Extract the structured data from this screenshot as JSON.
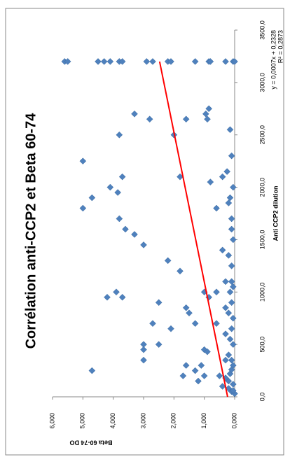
{
  "chart_data": {
    "type": "scatter",
    "title": "Corrélation anti-CCP2 et Beta 60-74",
    "x_label": "Anti CCP2 dilution",
    "y_label": "Beta 60-74 DO",
    "color": "#4f81bd",
    "x": [
      3200,
      3200,
      3200,
      3200,
      3200,
      3200,
      3200,
      3200,
      3200,
      3200,
      3200,
      3200,
      3200,
      3200,
      3200,
      3200,
      3200,
      2700,
      2650,
      2650,
      2700,
      2650,
      2750,
      2500,
      2500,
      2550,
      2300,
      2250,
      2100,
      2100,
      2100,
      2000,
      1950,
      1900,
      2150,
      2050,
      1800,
      1800,
      1900,
      1700,
      1600,
      1600,
      1550,
      1450,
      1300,
      1400,
      1200,
      1100,
      1100,
      1000,
      1000,
      1000,
      950,
      950,
      950,
      900,
      850,
      850,
      800,
      700,
      700,
      700,
      650,
      600,
      500,
      500,
      450,
      450,
      430,
      350,
      350,
      300,
      300,
      250,
      250,
      200,
      200,
      200,
      150,
      150,
      100,
      50,
      80,
      120,
      180,
      220,
      260,
      300,
      350,
      400,
      500,
      550,
      650,
      750,
      800,
      900,
      1000,
      1050,
      1250,
      1350,
      1500,
      1700,
      1850,
      2000,
      30,
      60
    ],
    "values": [
      5.6,
      5.5,
      4.5,
      4.3,
      4.1,
      3.8,
      3.7,
      2.9,
      2.7,
      2.2,
      2.1,
      1.3,
      0.85,
      0.8,
      0.3,
      0.05,
      0,
      3.3,
      2.8,
      1.6,
      0.95,
      0.9,
      0.85,
      3.8,
      2.0,
      0.15,
      0.1,
      5.0,
      3.7,
      1.8,
      0.4,
      4.1,
      3.85,
      4.7,
      0.25,
      0.8,
      5.0,
      0.6,
      0.15,
      3.8,
      3.6,
      0.1,
      3.3,
      3.0,
      2.2,
      0.4,
      1.8,
      0.1,
      0.3,
      1.0,
      0.6,
      3.9,
      4.2,
      3.7,
      0.85,
      2.5,
      1.6,
      0.3,
      1.5,
      2.7,
      1.3,
      0.6,
      2.1,
      0.3,
      3.0,
      2.5,
      3.0,
      1.0,
      0.9,
      3.0,
      0.3,
      1.6,
      1.1,
      4.7,
      1.3,
      1.7,
      1.0,
      0.5,
      1.2,
      0.2,
      0.4,
      0.1,
      0.2,
      0.05,
      0.3,
      0.15,
      0.1,
      0.05,
      0.1,
      0.2,
      0.05,
      0.15,
      0.1,
      0.05,
      0.2,
      0.1,
      0.15,
      0.05,
      0.1,
      0.2,
      0.05,
      0.1,
      0.2,
      0.05,
      0,
      0.05
    ],
    "xlim": [
      0,
      3500
    ],
    "xticks": [
      {
        "value": 0,
        "label": "0,0"
      },
      {
        "value": 500,
        "label": "500,0"
      },
      {
        "value": 1000,
        "label": "1000,0"
      },
      {
        "value": 1500,
        "label": "1500,0"
      },
      {
        "value": 2000,
        "label": "2000,0"
      },
      {
        "value": 2500,
        "label": "2500,0"
      },
      {
        "value": 3000,
        "label": "3000,0"
      },
      {
        "value": 3500,
        "label": "3500,0"
      }
    ],
    "ylim": [
      0,
      6
    ],
    "yticks": [
      {
        "value": 0,
        "label": "0,000"
      },
      {
        "value": 1,
        "label": "1,000"
      },
      {
        "value": 2,
        "label": "2,000"
      },
      {
        "value": 3,
        "label": "3,000"
      },
      {
        "value": 4,
        "label": "4,000"
      },
      {
        "value": 5,
        "label": "5,000"
      },
      {
        "value": 6,
        "label": "6,000"
      }
    ],
    "trendline": {
      "slope": 0.0007,
      "intercept": 0.2328,
      "color": "#ff0000",
      "equation": "y = 0,0007x + 0,2328",
      "r_squared": "R² = 0,2873"
    }
  }
}
